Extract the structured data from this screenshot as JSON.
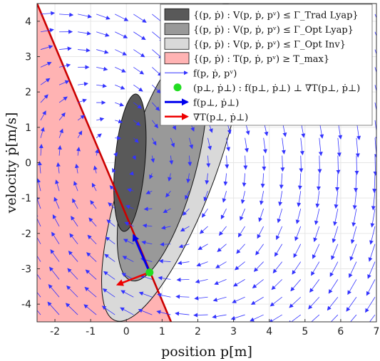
{
  "chart_data": {
    "type": "quiver",
    "xlabel": "position p[m]",
    "ylabel": "velocity ṗ[m/s]",
    "xlim": [
      -2.5,
      7.0
    ],
    "ylim": [
      -4.5,
      4.5
    ],
    "xticks": [
      -2,
      -1,
      0,
      1,
      2,
      3,
      4,
      5,
      6,
      7
    ],
    "yticks": [
      -4,
      -3,
      -2,
      -1,
      0,
      1,
      2,
      3,
      4
    ],
    "grid": true,
    "legend_position": "top-right",
    "colors": {
      "trad_lyap": "#595959",
      "opt_lyap": "#999999",
      "opt_inv": "#d9d9d9",
      "infeasible": "#ffb3b3",
      "boundary_line": "#cc0000",
      "vector_field": "#3333ff",
      "perp_point": "#22dd22",
      "f_arrow": "#0000ee",
      "grad_arrow": "#ee0000"
    },
    "legend": [
      {
        "text": "{(p, ṗ) : V(p, ṗ, pᵛ) ≤ Γ_Trad Lyap}"
      },
      {
        "text": "{(p, ṗ) : V(p, ṗ, pᵛ) ≤ Γ_Opt Lyap}"
      },
      {
        "text": "{(p, ṗ) : V(p, ṗ, pᵛ) ≤ Γ_Opt Inv}"
      },
      {
        "text": "{(p, ṗ) : T(p, ṗ, pᵛ) ≥ T_max}"
      },
      {
        "text": "f(p, ṗ, pᵛ)"
      },
      {
        "text": "(p⊥, ṗ⊥) : f(p⊥, ṗ⊥) ⊥ ∇T(p⊥, ṗ⊥)"
      },
      {
        "text": "f(p⊥, ṗ⊥)"
      },
      {
        "text": "∇T(p⊥, ṗ⊥)"
      }
    ],
    "regions": {
      "infeasible_boundary_line": {
        "p1": [
          -2.5,
          4.5
        ],
        "p2": [
          1.25,
          -4.5
        ]
      },
      "ellipses": [
        {
          "name": "opt_inv",
          "center": [
            1.3,
            0.0
          ],
          "semi_axes": [
            1.25,
            4.75
          ],
          "angle_deg": -20
        },
        {
          "name": "opt_lyap",
          "center": [
            1.0,
            -0.1
          ],
          "semi_axes": [
            0.95,
            3.35
          ],
          "angle_deg": -15
        },
        {
          "name": "trad_lyap",
          "center": [
            0.1,
            0.0
          ],
          "semi_axes": [
            0.42,
            1.95
          ],
          "angle_deg": -5
        }
      ]
    },
    "perp_point": [
      0.65,
      -3.1
    ],
    "f_perp_vector": [
      -0.45,
      1.05
    ],
    "grad_T_vector": [
      -0.9,
      -0.35
    ]
  }
}
